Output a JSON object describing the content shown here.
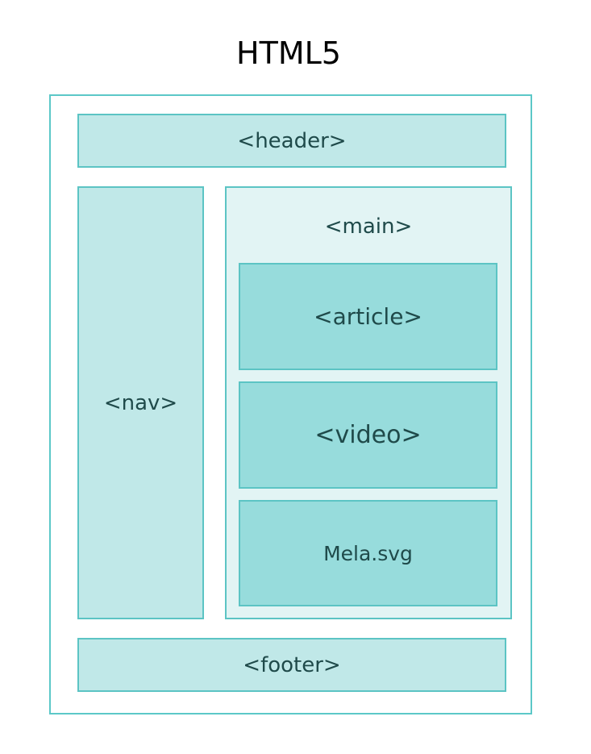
{
  "title": "HTML5",
  "diagram": {
    "header": "<header>",
    "nav": "<nav>",
    "main": "<main>",
    "article": "<article>",
    "video": "<video>",
    "image": "Mela.svg",
    "footer": "<footer>"
  },
  "colors": {
    "border": "#5cc4c4",
    "light_fill": "#c0e8e8",
    "pale_fill": "#e2f4f4",
    "mid_fill": "#97dcdc",
    "text": "#1f4a4a"
  }
}
